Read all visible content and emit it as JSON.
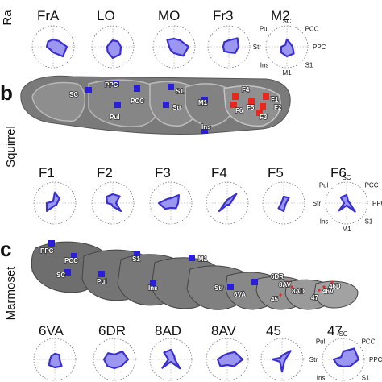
{
  "panels": [
    {
      "letter": "",
      "species": "Ra"
    },
    {
      "letter": "b",
      "species": "Squirrel"
    },
    {
      "letter": "c",
      "species": "Marmoset"
    }
  ],
  "axis_labels": [
    "SC",
    "PCC",
    "PPC",
    "S1",
    "M1",
    "Ins",
    "Str",
    "Pul"
  ],
  "rows": [
    {
      "plots": [
        {
          "title": "FrA",
          "values": [
            0.45,
            0.5,
            0.85,
            0.85,
            0.35,
            0.25,
            0.4,
            0.45
          ]
        },
        {
          "title": "LO",
          "values": [
            0.4,
            0.45,
            0.5,
            0.65,
            0.7,
            0.45,
            0.35,
            0.3
          ]
        },
        {
          "title": "MO",
          "values": [
            0.5,
            0.55,
            0.9,
            0.8,
            0.4,
            0.3,
            0.3,
            0.6
          ]
        },
        {
          "title": "Fr3",
          "values": [
            0.4,
            0.75,
            0.6,
            0.55,
            0.35,
            0.4,
            0.35,
            0.4
          ]
        },
        {
          "title": "M2",
          "values": [
            0.45,
            0.3,
            0.35,
            0.6,
            0.6,
            0.5,
            0.35,
            0.15
          ],
          "labeled": true
        }
      ]
    },
    {
      "plots": [
        {
          "title": "F1",
          "values": [
            0.65,
            0.4,
            0.15,
            0.15,
            0.15,
            0.7,
            0.5,
            0.15
          ]
        },
        {
          "title": "F2",
          "values": [
            0.55,
            0.6,
            0.2,
            0.7,
            0.2,
            0.1,
            0.35,
            0.55
          ]
        },
        {
          "title": "F3",
          "values": [
            0.3,
            0.7,
            0.45,
            0.45,
            0.3,
            0.5,
            0.75,
            0.35
          ]
        },
        {
          "title": "F4",
          "values": [
            0.2,
            0.8,
            0.2,
            0.15,
            0.1,
            0.7,
            0.15,
            0.1
          ]
        },
        {
          "title": "F5",
          "values": [
            0.4,
            0.45,
            0.15,
            0.15,
            0.5,
            0.45,
            0.15,
            0.15
          ]
        },
        {
          "title": "F6",
          "values": [
            0.5,
            0.15,
            0.2,
            0.75,
            0.15,
            0.65,
            0.15,
            0.5
          ],
          "labeled": true
        }
      ]
    },
    {
      "plots": [
        {
          "title": "6VA",
          "values": [
            0.35,
            0.4,
            0.3,
            0.6,
            0.5,
            0.5,
            0.3,
            0.3
          ]
        },
        {
          "title": "6DR",
          "values": [
            0.3,
            0.7,
            0.85,
            0.6,
            0.55,
            0.6,
            0.65,
            0.55
          ]
        },
        {
          "title": "8AD",
          "values": [
            0.6,
            0.3,
            0.25,
            0.8,
            0.15,
            0.75,
            0.15,
            0.6
          ]
        },
        {
          "title": "8AV",
          "values": [
            0.35,
            0.65,
            0.95,
            0.6,
            0.35,
            0.6,
            0.6,
            0.35
          ]
        },
        {
          "title": "45",
          "values": [
            0.25,
            0.75,
            0.2,
            0.2,
            0.75,
            0.2,
            0.6,
            0.15
          ]
        },
        {
          "title": "47",
          "values": [
            0.5,
            0.95,
            0.95,
            0.6,
            0.45,
            0.5,
            0.6,
            0.2
          ],
          "labeled": true
        }
      ]
    }
  ],
  "squirrel_markers": [
    "SC",
    "PPC",
    "Pul",
    "PCC",
    "Str",
    "S1",
    "M1",
    "Ins",
    "F4",
    "F6",
    "F5",
    "F1",
    "F2",
    "F3"
  ],
  "marmoset_markers": [
    "PPC",
    "PCC",
    "SC",
    "Pul",
    "S1",
    "Ins",
    "M1",
    "Str",
    "6VA",
    "6DR",
    "8AV",
    "8AD",
    "45",
    "47",
    "46V",
    "46D"
  ],
  "colors": {
    "trace": "#3a2fd0",
    "fill": "#9b97f0",
    "marker": "#2a1fd8",
    "marker_red": "#e8281f",
    "brain": "#6b6b6b"
  }
}
